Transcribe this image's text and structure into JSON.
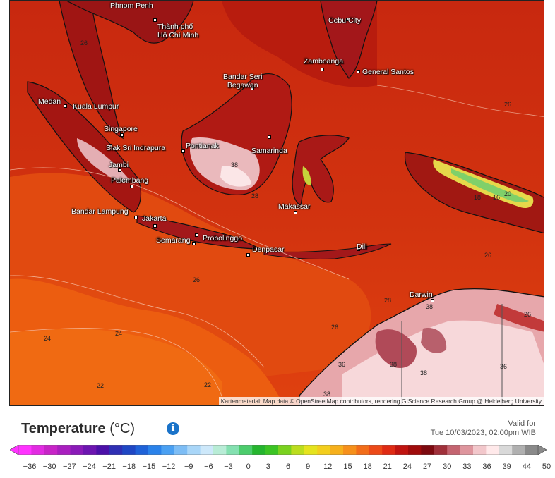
{
  "map": {
    "attribution": "Kartenmaterial: Map data © OpenStreetMap contributors, rendering GIScience Research Group @ Heidelberg University",
    "cities": [
      {
        "name": "Phnom Penh"
      },
      {
        "name": "Thành phố\nHồ Chí Minh"
      },
      {
        "name": "Cebu City"
      },
      {
        "name": "Zamboanga"
      },
      {
        "name": "General Santos"
      },
      {
        "name": "Bandar Seri\nBegawan"
      },
      {
        "name": "Medan"
      },
      {
        "name": "Kuala Lumpur"
      },
      {
        "name": "Singapore"
      },
      {
        "name": "Siak Sri Indrapura"
      },
      {
        "name": "Pontianak"
      },
      {
        "name": "Samarinda"
      },
      {
        "name": "Jambi"
      },
      {
        "name": "Palembang"
      },
      {
        "name": "Bandar Lampung"
      },
      {
        "name": "Jakarta"
      },
      {
        "name": "Makassar"
      },
      {
        "name": "Semarang"
      },
      {
        "name": "Probolinggo"
      },
      {
        "name": "Denpasar"
      },
      {
        "name": "Dili"
      },
      {
        "name": "Darwin"
      }
    ],
    "contour_labels": [
      "26",
      "26",
      "38",
      "28",
      "18",
      "16",
      "20",
      "26",
      "26",
      "28",
      "26",
      "26",
      "38",
      "24",
      "24",
      "22",
      "22",
      "36",
      "38",
      "38",
      "36",
      "38"
    ]
  },
  "legend": {
    "title": "Temperature",
    "unit": "(°C)",
    "valid_label": "Valid for",
    "valid_time": "Tue 10/03/2023, 02:00pm WIB",
    "ticks": [
      "−36",
      "−30",
      "−27",
      "−24",
      "−21",
      "−18",
      "−15",
      "−12",
      "−9",
      "−6",
      "−3",
      "0",
      "3",
      "6",
      "9",
      "12",
      "15",
      "18",
      "21",
      "24",
      "27",
      "30",
      "33",
      "36",
      "39",
      "44",
      "50"
    ],
    "colors": [
      "#ff33ff",
      "#e22be2",
      "#c724c7",
      "#a91fbf",
      "#8a1ab8",
      "#6c15b0",
      "#4b10a8",
      "#2f2fb4",
      "#1f47c4",
      "#1f62d8",
      "#2a82ea",
      "#4aa0f2",
      "#7dbdf5",
      "#a9d6f8",
      "#cde8fa",
      "#b8ecd6",
      "#84e0b0",
      "#4ccc6c",
      "#25b52e",
      "#3cc424",
      "#7ad21f",
      "#bbdd1e",
      "#e5e31e",
      "#f3ce1d",
      "#f6b01c",
      "#f6901b",
      "#f26d1a",
      "#ec4a18",
      "#df2b14",
      "#c01410",
      "#a00c0c",
      "#7d0a10",
      "#a0303a",
      "#c46470",
      "#de959d",
      "#f2c7cb",
      "#ffe9ea",
      "#d9d9d9",
      "#b0b0b0",
      "#8a8a8a"
    ],
    "info_icon": "info-icon"
  }
}
